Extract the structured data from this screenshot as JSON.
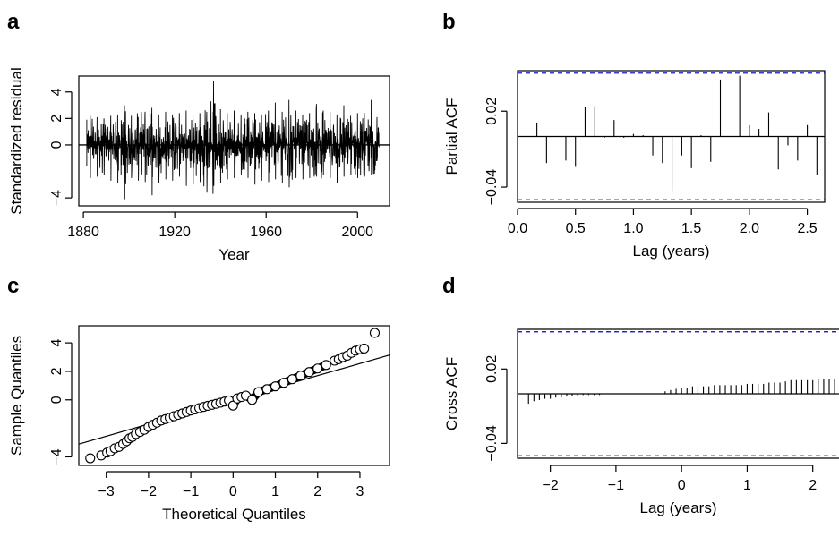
{
  "chart_data": [
    {
      "panel": "a",
      "type": "line",
      "xlabel": "Year",
      "ylabel": "Standardized residual",
      "xlim": [
        1878,
        2014
      ],
      "ylim": [
        -4.6,
        5.2
      ],
      "x_ticks": [
        1880,
        1920,
        1960,
        2000
      ],
      "x_tick_labels": [
        "1880",
        "1920",
        "1960",
        "2000"
      ],
      "y_ticks": [
        -4,
        0,
        2,
        4
      ],
      "y_tick_labels": [
        "−4",
        "0",
        "2",
        "4"
      ],
      "hline": 0,
      "series": [
        {
          "color": "#000000",
          "x": [
            1881.5,
            1884.5,
            1887.5,
            1890.5,
            1893.5,
            1896.5,
            1899.5,
            1902.5,
            1905.5,
            1908.5,
            1911.5,
            1914.5,
            1917.5,
            1920.5,
            1923.5,
            1926.5,
            1929.5,
            1932.5,
            1935.5,
            1938.5,
            1941.5,
            1944.5,
            1947.5,
            1950.5,
            1953.5,
            1956.5,
            1959.5,
            1962.5,
            1965.5,
            1968.5,
            1971.5,
            1974.5,
            1977.5,
            1980.5,
            1983.5,
            1986.5,
            1989.5,
            1992.5,
            1995.5,
            1998.5,
            2001.5,
            2004.5,
            2007.5,
            2009.5
          ],
          "high": [
            1.9,
            2.2,
            2.1,
            2.0,
            2.2,
            2.3,
            3.0,
            2.2,
            2.1,
            2.5,
            2.8,
            2.3,
            2.5,
            2.3,
            2.4,
            2.6,
            2.2,
            2.4,
            2.5,
            4.8,
            2.7,
            2.4,
            2.6,
            2.3,
            2.5,
            2.4,
            2.3,
            2.6,
            3.2,
            2.5,
            3.4,
            2.6,
            2.3,
            2.4,
            3.1,
            2.6,
            2.5,
            2.3,
            3.0,
            2.2,
            2.4,
            2.4,
            3.4,
            2.1
          ],
          "low": [
            -1.6,
            -2.5,
            -2.4,
            -2.3,
            -2.7,
            -2.9,
            -4.1,
            -2.5,
            -2.7,
            -2.8,
            -3.8,
            -2.9,
            -2.6,
            -2.7,
            -2.4,
            -3.1,
            -3.0,
            -2.8,
            -3.6,
            -3.1,
            -2.9,
            -2.6,
            -2.5,
            -2.3,
            -2.5,
            -3.0,
            -2.7,
            -2.8,
            -2.6,
            -2.9,
            -3.2,
            -2.5,
            -2.6,
            -2.5,
            -2.4,
            -2.3,
            -2.5,
            -2.9,
            -2.4,
            -2.3,
            -2.5,
            -2.4,
            -2.3,
            -1.2
          ]
        }
      ]
    },
    {
      "panel": "b",
      "type": "bar",
      "xlabel": "Lag (years)",
      "ylabel": "Partial ACF",
      "xlim": [
        0,
        2.65
      ],
      "ylim": [
        -0.052,
        0.052
      ],
      "x_ticks": [
        0.0,
        0.5,
        1.0,
        1.5,
        2.0,
        2.5
      ],
      "x_tick_labels": [
        "0.0",
        "0.5",
        "1.0",
        "1.5",
        "2.0",
        "2.5"
      ],
      "y_ticks": [
        -0.04,
        0.02
      ],
      "y_tick_labels": [
        "−0.04",
        "0.02"
      ],
      "confidence_band": [
        -0.05,
        0.05
      ],
      "band_color": "#0000cc",
      "hline": 0,
      "x": [
        0.167,
        0.25,
        0.333,
        0.417,
        0.5,
        0.583,
        0.667,
        0.75,
        0.833,
        0.917,
        1.0,
        1.083,
        1.167,
        1.25,
        1.333,
        1.417,
        1.5,
        1.583,
        1.667,
        1.75,
        1.833,
        1.917,
        2.0,
        2.083,
        2.167,
        2.25,
        2.333,
        2.417,
        2.5,
        2.583
      ],
      "values": [
        0.011,
        -0.021,
        0.0,
        -0.019,
        -0.024,
        0.023,
        0.024,
        -0.001,
        0.013,
        -0.001,
        0.002,
        0.001,
        -0.015,
        -0.021,
        -0.043,
        -0.015,
        -0.025,
        0.001,
        -0.02,
        0.045,
        0.0,
        0.048,
        0.009,
        0.006,
        0.019,
        -0.026,
        -0.007,
        -0.019,
        0.009,
        -0.03
      ]
    },
    {
      "panel": "c",
      "type": "scatter",
      "xlabel": "Theoretical Quantiles",
      "ylabel": "Sample Quantiles",
      "xlim": [
        -3.65,
        3.7
      ],
      "ylim": [
        -4.6,
        5.2
      ],
      "x_ticks": [
        -3,
        -2,
        -1,
        0,
        1,
        2,
        3
      ],
      "x_tick_labels": [
        "−3",
        "−2",
        "−1",
        "0",
        "1",
        "2",
        "3"
      ],
      "y_ticks": [
        -4,
        0,
        2,
        4
      ],
      "y_tick_labels": [
        "−4",
        "0",
        "2",
        "4"
      ],
      "reference_line": {
        "slope": 0.85,
        "intercept": 0.0
      },
      "x": [
        -3.38,
        -3.12,
        -2.98,
        -2.9,
        -2.8,
        -2.7,
        -2.6,
        -2.52,
        -2.45,
        -2.38,
        -2.3,
        -2.2,
        -2.1,
        -2.0,
        -1.9,
        -1.8,
        -1.7,
        -1.6,
        -1.5,
        -1.4,
        -1.3,
        -1.2,
        -1.1,
        -1.0,
        -0.9,
        -0.8,
        -0.7,
        -0.6,
        -0.5,
        -0.4,
        -0.3,
        -0.2,
        -0.1,
        0.0,
        0.1,
        0.2,
        0.3,
        0.45,
        0.6,
        0.8,
        1.0,
        1.2,
        1.4,
        1.6,
        1.8,
        2.0,
        2.2,
        2.4,
        2.5,
        2.6,
        2.7,
        2.8,
        2.9,
        3.0,
        3.1,
        3.35
      ],
      "y": [
        -4.1,
        -3.9,
        -3.7,
        -3.6,
        -3.4,
        -3.3,
        -3.1,
        -2.9,
        -2.7,
        -2.6,
        -2.4,
        -2.25,
        -2.1,
        -1.9,
        -1.75,
        -1.6,
        -1.45,
        -1.35,
        -1.25,
        -1.15,
        -1.05,
        -0.95,
        -0.85,
        -0.75,
        -0.67,
        -0.58,
        -0.5,
        -0.42,
        -0.35,
        -0.28,
        -0.2,
        -0.12,
        -0.04,
        -0.4,
        0.1,
        0.2,
        0.3,
        0.0,
        0.55,
        0.75,
        0.95,
        1.2,
        1.45,
        1.7,
        1.95,
        2.2,
        2.45,
        2.75,
        2.85,
        3.0,
        3.1,
        3.3,
        3.45,
        3.55,
        3.6,
        4.7
      ]
    },
    {
      "panel": "d",
      "type": "bar",
      "xlabel": "Lag (years)",
      "ylabel": "Cross ACF",
      "xlim": [
        -2.5,
        2.4
      ],
      "ylim": [
        -0.052,
        0.052
      ],
      "x_ticks": [
        -2,
        -1,
        0,
        1,
        2
      ],
      "x_tick_labels": [
        "−2",
        "−1",
        "0",
        "1",
        "2"
      ],
      "y_ticks": [
        -0.04,
        0.02
      ],
      "y_tick_labels": [
        "−0.04",
        "0.02"
      ],
      "confidence_band": [
        -0.05,
        0.05
      ],
      "band_color": "#0000cc",
      "hline": 0,
      "x": [
        -2.333,
        -2.25,
        -2.167,
        -2.083,
        -2.0,
        -1.917,
        -1.833,
        -1.75,
        -1.667,
        -1.583,
        -1.5,
        -1.417,
        -1.333,
        -1.25,
        -1.167,
        -1.083,
        -1.0,
        -0.917,
        -0.833,
        -0.75,
        -0.667,
        -0.583,
        -0.5,
        -0.417,
        -0.333,
        -0.25,
        -0.167,
        -0.083,
        0.0,
        0.083,
        0.167,
        0.25,
        0.333,
        0.417,
        0.5,
        0.583,
        0.667,
        0.75,
        0.833,
        0.917,
        1.0,
        1.083,
        1.167,
        1.25,
        1.333,
        1.417,
        1.5,
        1.583,
        1.667,
        1.75,
        1.833,
        1.917,
        2.0,
        2.083,
        2.167,
        2.25,
        2.333
      ],
      "values": [
        -0.008,
        -0.006,
        -0.005,
        -0.004,
        -0.004,
        -0.003,
        -0.003,
        -0.002,
        -0.002,
        -0.002,
        -0.001,
        -0.001,
        -0.001,
        -0.001,
        0.0,
        0.0,
        0.0,
        0.0,
        0.0,
        0.0,
        0.0,
        0.0,
        0.0,
        0.0,
        0.0,
        0.002,
        0.003,
        0.004,
        0.005,
        0.005,
        0.006,
        0.006,
        0.006,
        0.006,
        0.007,
        0.007,
        0.007,
        0.007,
        0.007,
        0.007,
        0.008,
        0.008,
        0.008,
        0.008,
        0.009,
        0.009,
        0.009,
        0.01,
        0.011,
        0.011,
        0.011,
        0.011,
        0.011,
        0.012,
        0.012,
        0.012,
        0.012
      ]
    }
  ]
}
